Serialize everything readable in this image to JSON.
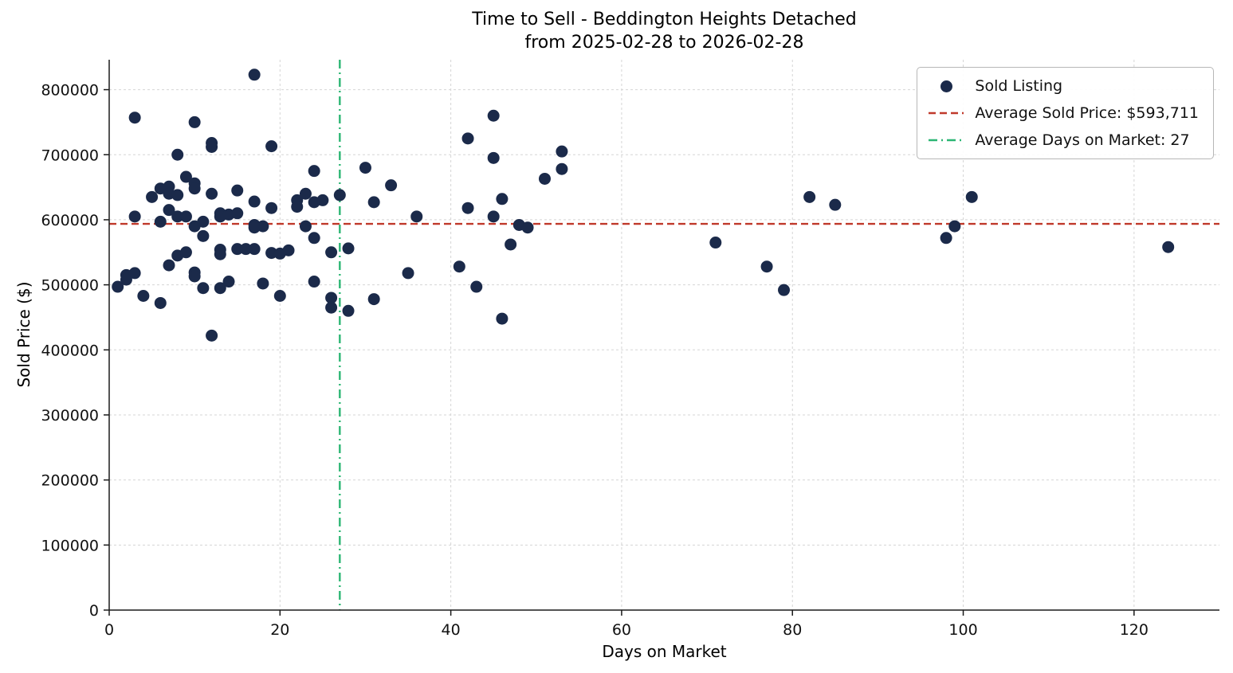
{
  "title": {
    "line1": "Time to Sell - Beddington Heights Detached",
    "line2": "from 2025-02-28 to 2026-02-28"
  },
  "legend": {
    "sold_listing": "Sold Listing",
    "avg_price": "Average Sold Price: $593,711",
    "avg_days": "Average Days on Market: 27"
  },
  "chart_data": {
    "type": "scatter",
    "title": "Time to Sell - Beddington Heights Detached\nfrom 2025-02-28 to 2026-02-28",
    "xlabel": "Days on Market",
    "ylabel": "Sold Price ($)",
    "xlim": [
      0,
      130
    ],
    "ylim": [
      0,
      846000
    ],
    "xticks": [
      0,
      20,
      40,
      60,
      80,
      100,
      120
    ],
    "yticks": [
      0,
      100000,
      200000,
      300000,
      400000,
      500000,
      600000,
      700000,
      800000
    ],
    "grid": true,
    "legend_position": "upper right",
    "avg_sold_price": 593711,
    "avg_days_on_market": 27,
    "colors": {
      "point": "#1b2a4a",
      "avg_price_line": "#c0392b",
      "avg_days_line": "#2bb673"
    },
    "points": [
      [
        1,
        497000
      ],
      [
        2,
        508000
      ],
      [
        2,
        515000
      ],
      [
        3,
        757000
      ],
      [
        3,
        605000
      ],
      [
        3,
        518000
      ],
      [
        4,
        483000
      ],
      [
        5,
        635000
      ],
      [
        6,
        597000
      ],
      [
        6,
        472000
      ],
      [
        6,
        648000
      ],
      [
        7,
        651000
      ],
      [
        7,
        640000
      ],
      [
        7,
        615000
      ],
      [
        7,
        530000
      ],
      [
        8,
        700000
      ],
      [
        8,
        638000
      ],
      [
        8,
        605000
      ],
      [
        8,
        545000
      ],
      [
        9,
        666000
      ],
      [
        9,
        605000
      ],
      [
        9,
        550000
      ],
      [
        10,
        750000
      ],
      [
        10,
        656000
      ],
      [
        10,
        648000
      ],
      [
        10,
        590000
      ],
      [
        10,
        519000
      ],
      [
        10,
        513000
      ],
      [
        11,
        597000
      ],
      [
        11,
        575000
      ],
      [
        11,
        495000
      ],
      [
        12,
        718000
      ],
      [
        12,
        712000
      ],
      [
        12,
        640000
      ],
      [
        12,
        422000
      ],
      [
        13,
        610000
      ],
      [
        13,
        605000
      ],
      [
        13,
        554000
      ],
      [
        13,
        547000
      ],
      [
        13,
        495000
      ],
      [
        14,
        608000
      ],
      [
        14,
        505000
      ],
      [
        15,
        645000
      ],
      [
        15,
        610000
      ],
      [
        15,
        555000
      ],
      [
        16,
        555000
      ],
      [
        17,
        823000
      ],
      [
        17,
        628000
      ],
      [
        17,
        592000
      ],
      [
        17,
        588000
      ],
      [
        17,
        555000
      ],
      [
        18,
        590000
      ],
      [
        18,
        502000
      ],
      [
        19,
        713000
      ],
      [
        19,
        618000
      ],
      [
        19,
        549000
      ],
      [
        20,
        548000
      ],
      [
        20,
        483000
      ],
      [
        21,
        553000
      ],
      [
        22,
        630000
      ],
      [
        22,
        620000
      ],
      [
        23,
        640000
      ],
      [
        23,
        590000
      ],
      [
        24,
        675000
      ],
      [
        24,
        627000
      ],
      [
        24,
        572000
      ],
      [
        24,
        505000
      ],
      [
        25,
        630000
      ],
      [
        26,
        550000
      ],
      [
        26,
        480000
      ],
      [
        26,
        465000
      ],
      [
        27,
        638000
      ],
      [
        28,
        556000
      ],
      [
        28,
        460000
      ],
      [
        30,
        680000
      ],
      [
        31,
        627000
      ],
      [
        31,
        478000
      ],
      [
        33,
        653000
      ],
      [
        35,
        518000
      ],
      [
        36,
        605000
      ],
      [
        41,
        528000
      ],
      [
        42,
        725000
      ],
      [
        42,
        618000
      ],
      [
        43,
        497000
      ],
      [
        45,
        760000
      ],
      [
        45,
        695000
      ],
      [
        45,
        605000
      ],
      [
        46,
        632000
      ],
      [
        46,
        448000
      ],
      [
        47,
        562000
      ],
      [
        48,
        592000
      ],
      [
        49,
        588000
      ],
      [
        51,
        663000
      ],
      [
        53,
        705000
      ],
      [
        53,
        678000
      ],
      [
        71,
        565000
      ],
      [
        77,
        528000
      ],
      [
        79,
        492000
      ],
      [
        82,
        635000
      ],
      [
        85,
        623000
      ],
      [
        98,
        572000
      ],
      [
        99,
        590000
      ],
      [
        101,
        635000
      ],
      [
        124,
        558000
      ]
    ]
  }
}
